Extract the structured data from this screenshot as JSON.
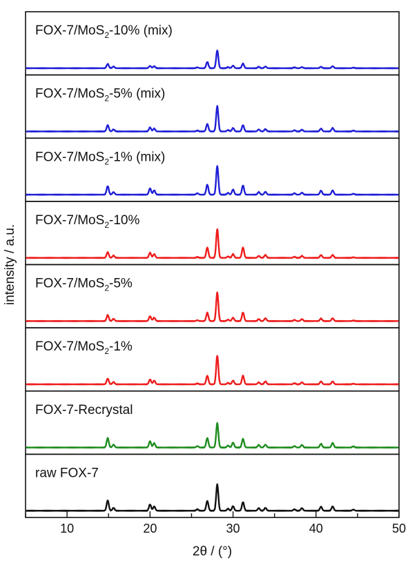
{
  "chart_data": {
    "type": "line",
    "xlabel": "2θ / (°)",
    "ylabel": "intensity / a.u.",
    "xlim": [
      5,
      50
    ],
    "x_ticks": [
      "10",
      "20",
      "30",
      "40",
      "50"
    ],
    "grid": false,
    "legend": "none",
    "peak_positions": [
      14.9,
      15.6,
      20.0,
      20.5,
      25.7,
      26.9,
      28.1,
      29.4,
      30.0,
      31.2,
      33.1,
      33.9,
      37.4,
      38.3,
      40.6,
      42.0,
      44.5
    ],
    "series": [
      {
        "name_parts": [
          "FOX-7/MoS",
          "2",
          "-10% (mix)"
        ],
        "color": "#1f1fd6",
        "peak_heights": [
          0.15,
          0.06,
          0.08,
          0.07,
          0.03,
          0.22,
          0.62,
          0.04,
          0.09,
          0.16,
          0.05,
          0.06,
          0.03,
          0.04,
          0.05,
          0.07,
          0.02
        ]
      },
      {
        "name_parts": [
          "FOX-7/MoS",
          "2",
          "-5% (mix)"
        ],
        "color": "#1f1fd6",
        "peak_heights": [
          0.22,
          0.07,
          0.14,
          0.1,
          0.03,
          0.26,
          0.88,
          0.05,
          0.12,
          0.22,
          0.07,
          0.08,
          0.04,
          0.06,
          0.1,
          0.12,
          0.03
        ]
      },
      {
        "name_parts": [
          "FOX-7/MoS",
          "2",
          "-1% (mix)"
        ],
        "color": "#1f1fd6",
        "peak_heights": [
          0.3,
          0.09,
          0.22,
          0.15,
          0.05,
          0.35,
          1.0,
          0.06,
          0.18,
          0.32,
          0.09,
          0.1,
          0.05,
          0.07,
          0.14,
          0.15,
          0.03
        ]
      },
      {
        "name_parts": [
          "FOX-7/MoS",
          "2",
          "-10%"
        ],
        "color": "#ee1c1c",
        "peak_heights": [
          0.2,
          0.08,
          0.18,
          0.13,
          0.03,
          0.36,
          1.0,
          0.05,
          0.13,
          0.36,
          0.07,
          0.1,
          0.04,
          0.07,
          0.1,
          0.1,
          0.02
        ]
      },
      {
        "name_parts": [
          "FOX-7/MoS",
          "2",
          "-5%"
        ],
        "color": "#ee1c1c",
        "peak_heights": [
          0.21,
          0.08,
          0.17,
          0.12,
          0.03,
          0.29,
          1.0,
          0.05,
          0.12,
          0.3,
          0.07,
          0.1,
          0.04,
          0.07,
          0.09,
          0.1,
          0.02
        ]
      },
      {
        "name_parts": [
          "FOX-7/MoS",
          "2",
          "-1%"
        ],
        "color": "#ee1c1c",
        "peak_heights": [
          0.2,
          0.08,
          0.17,
          0.13,
          0.03,
          0.3,
          1.0,
          0.05,
          0.13,
          0.3,
          0.07,
          0.1,
          0.04,
          0.07,
          0.1,
          0.1,
          0.02
        ]
      },
      {
        "name_parts": [
          "FOX-7-Recrystal",
          "",
          ""
        ],
        "color": "#1e8c1e",
        "peak_heights": [
          0.33,
          0.1,
          0.22,
          0.15,
          0.05,
          0.33,
          0.85,
          0.07,
          0.17,
          0.3,
          0.09,
          0.1,
          0.05,
          0.09,
          0.13,
          0.16,
          0.04
        ]
      },
      {
        "name_parts": [
          "raw FOX-7",
          "",
          ""
        ],
        "color": "#111111",
        "peak_heights": [
          0.36,
          0.1,
          0.22,
          0.15,
          0.05,
          0.34,
          0.92,
          0.07,
          0.16,
          0.3,
          0.09,
          0.1,
          0.05,
          0.09,
          0.14,
          0.15,
          0.04
        ]
      }
    ]
  }
}
